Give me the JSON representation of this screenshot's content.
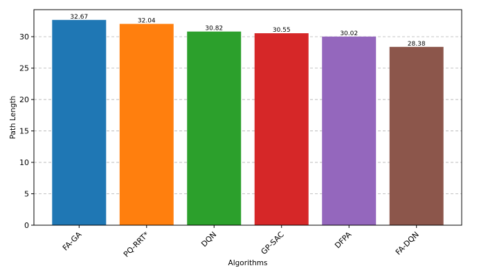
{
  "chart_data": {
    "type": "bar",
    "categories": [
      "FA-GA",
      "PQ-RRT*",
      "DQN",
      "GP-SAC",
      "DFPA",
      "FA-DQN"
    ],
    "values": [
      32.67,
      32.04,
      30.82,
      30.55,
      30.02,
      28.38
    ],
    "value_labels": [
      "32.67",
      "32.04",
      "30.82",
      "30.55",
      "30.02",
      "28.38"
    ],
    "colors": [
      "#1f77b4",
      "#ff7f0e",
      "#2ca02c",
      "#d62728",
      "#9467bd",
      "#8c564b"
    ],
    "xlabel": "Algorithms",
    "ylabel": "Path Length",
    "ylim": [
      0,
      34.3
    ],
    "yticks": [
      0,
      5,
      10,
      15,
      20,
      25,
      30
    ],
    "grid": "y-dashed",
    "legend": "none"
  }
}
